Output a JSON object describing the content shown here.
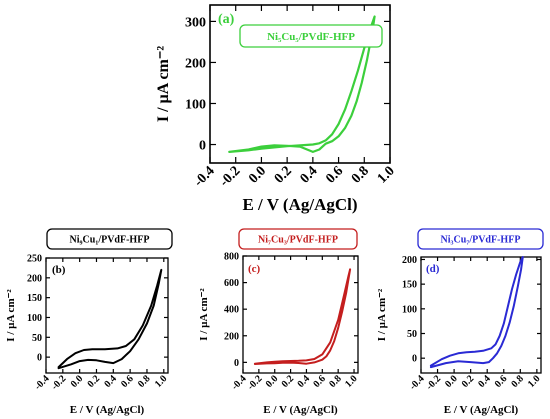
{
  "chart_data": [
    {
      "id": "a",
      "type": "line",
      "panel_label": "(a)",
      "legend": "Ni₅Cu₅/PVdF-HFP",
      "color": "#3ccf3c",
      "xlabel": "E / V (Ag/AgCl)",
      "ylabel": "I / µA cm⁻²",
      "xlim": [
        -0.4,
        1.0
      ],
      "ylim": [
        -45,
        340
      ],
      "xticks": [
        "-0.4",
        "-0.2",
        "0.0",
        "0.2",
        "0.4",
        "0.6",
        "0.8",
        "1.0"
      ],
      "yticks": [
        "0",
        "100",
        "200",
        "300"
      ],
      "xtick_values": [
        -0.4,
        -0.2,
        0.0,
        0.2,
        0.4,
        0.6,
        0.8,
        1.0
      ],
      "ytick_values": [
        0,
        100,
        200,
        300
      ],
      "series": [
        {
          "x": [
            -0.25,
            -0.1,
            0.0,
            0.1,
            0.2,
            0.3,
            0.4,
            0.45,
            0.5,
            0.55,
            0.6,
            0.65,
            0.7,
            0.75,
            0.8,
            0.85,
            0.88,
            0.86,
            0.82,
            0.78,
            0.74,
            0.7,
            0.65,
            0.6,
            0.55,
            0.5,
            0.45,
            0.4,
            0.3,
            0.2,
            0.1,
            0.0,
            -0.1,
            -0.25
          ],
          "y": [
            -18,
            -14,
            -10,
            -7,
            -4,
            -2,
            0,
            3,
            10,
            25,
            50,
            85,
            130,
            180,
            235,
            285,
            312,
            270,
            205,
            150,
            105,
            70,
            40,
            20,
            8,
            2,
            -12,
            -18,
            -5,
            -3,
            -2,
            -5,
            -12,
            -18
          ]
        }
      ]
    },
    {
      "id": "b",
      "type": "line",
      "panel_label": "(b)",
      "legend": "Ni₉Cu₁/PVdF-HFP",
      "color": "#000000",
      "xlabel": "E / V (Ag/AgCl)",
      "ylabel": "I / µA cm⁻²",
      "xlim": [
        -0.4,
        1.05
      ],
      "ylim": [
        -40,
        250
      ],
      "xticks": [
        "-0.4",
        "-0.2",
        "0.0",
        "0.2",
        "0.4",
        "0.6",
        "0.8",
        "1.0"
      ],
      "yticks": [
        "-50",
        "0",
        "50",
        "100",
        "150",
        "200",
        "250"
      ],
      "xtick_values": [
        -0.4,
        -0.2,
        0.0,
        0.2,
        0.4,
        0.6,
        0.8,
        1.0
      ],
      "ytick_values": [
        -50,
        0,
        50,
        100,
        150,
        200,
        250
      ],
      "series": [
        {
          "x": [
            -0.25,
            -0.15,
            -0.05,
            0.05,
            0.15,
            0.3,
            0.45,
            0.55,
            0.65,
            0.75,
            0.85,
            0.92,
            0.97,
            0.94,
            0.88,
            0.8,
            0.7,
            0.6,
            0.5,
            0.4,
            0.3,
            0.2,
            0.1,
            0.0,
            -0.1,
            -0.25
          ],
          "y": [
            -25,
            -5,
            10,
            18,
            20,
            20,
            22,
            28,
            45,
            80,
            130,
            180,
            220,
            185,
            130,
            85,
            45,
            15,
            -5,
            -15,
            -12,
            -8,
            -7,
            -10,
            -18,
            -28
          ]
        }
      ]
    },
    {
      "id": "c",
      "type": "line",
      "panel_label": "(c)",
      "legend": "Ni₇Cu₃/PVdF-HFP",
      "color": "#c41e1e",
      "xlabel": "E / V (Ag/AgCl)",
      "ylabel": "I / µA cm⁻²",
      "xlim": [
        -0.4,
        1.05
      ],
      "ylim": [
        -80,
        800
      ],
      "xticks": [
        "-0.4",
        "-0.2",
        "0.0",
        "0.2",
        "0.4",
        "0.6",
        "0.8",
        "1.0"
      ],
      "yticks": [
        "0",
        "200",
        "400",
        "600",
        "800"
      ],
      "xtick_values": [
        -0.4,
        -0.2,
        0.0,
        0.2,
        0.4,
        0.6,
        0.8,
        1.0
      ],
      "ytick_values": [
        0,
        200,
        400,
        600,
        800
      ],
      "series": [
        {
          "x": [
            -0.25,
            -0.1,
            0.0,
            0.1,
            0.2,
            0.3,
            0.4,
            0.5,
            0.6,
            0.7,
            0.8,
            0.88,
            0.93,
            0.95,
            0.9,
            0.85,
            0.8,
            0.75,
            0.7,
            0.65,
            0.6,
            0.5,
            0.4,
            0.3,
            0.2,
            0.1,
            0.0,
            -0.1,
            -0.25
          ],
          "y": [
            -10,
            0,
            5,
            8,
            10,
            12,
            15,
            25,
            60,
            150,
            320,
            520,
            650,
            700,
            520,
            380,
            260,
            160,
            90,
            45,
            20,
            0,
            -10,
            -5,
            -2,
            -3,
            -6,
            -8,
            -12
          ]
        }
      ]
    },
    {
      "id": "d",
      "type": "line",
      "panel_label": "(d)",
      "legend": "Ni₃Cu₇/PVdF-HFP",
      "color": "#2a2ad4",
      "xlabel": "E / V (Ag/AgCl)",
      "ylabel": "I / µA cm⁻²",
      "xlim": [
        -0.4,
        1.05
      ],
      "ylim": [
        -30,
        205
      ],
      "xticks": [
        "-0.4",
        "-0.2",
        "0.0",
        "0.2",
        "0.4",
        "0.6",
        "0.8",
        "1.0"
      ],
      "yticks": [
        "0",
        "50",
        "100",
        "150",
        "200"
      ],
      "xtick_values": [
        -0.4,
        -0.2,
        0.0,
        0.2,
        0.4,
        0.6,
        0.8,
        1.0
      ],
      "ytick_values": [
        0,
        50,
        100,
        150,
        200
      ],
      "series": [
        {
          "x": [
            -0.28,
            -0.15,
            -0.05,
            0.05,
            0.15,
            0.25,
            0.35,
            0.45,
            0.5,
            0.55,
            0.6,
            0.65,
            0.7,
            0.75,
            0.8,
            0.83,
            0.81,
            0.77,
            0.72,
            0.67,
            0.62,
            0.57,
            0.52,
            0.47,
            0.42,
            0.35,
            0.2,
            0.05,
            -0.1,
            -0.28
          ],
          "y": [
            -15,
            -2,
            5,
            10,
            12,
            13,
            15,
            20,
            28,
            45,
            70,
            105,
            140,
            170,
            195,
            205,
            180,
            145,
            105,
            72,
            45,
            25,
            10,
            0,
            -8,
            -10,
            -8,
            -6,
            -10,
            -18
          ]
        }
      ]
    }
  ]
}
